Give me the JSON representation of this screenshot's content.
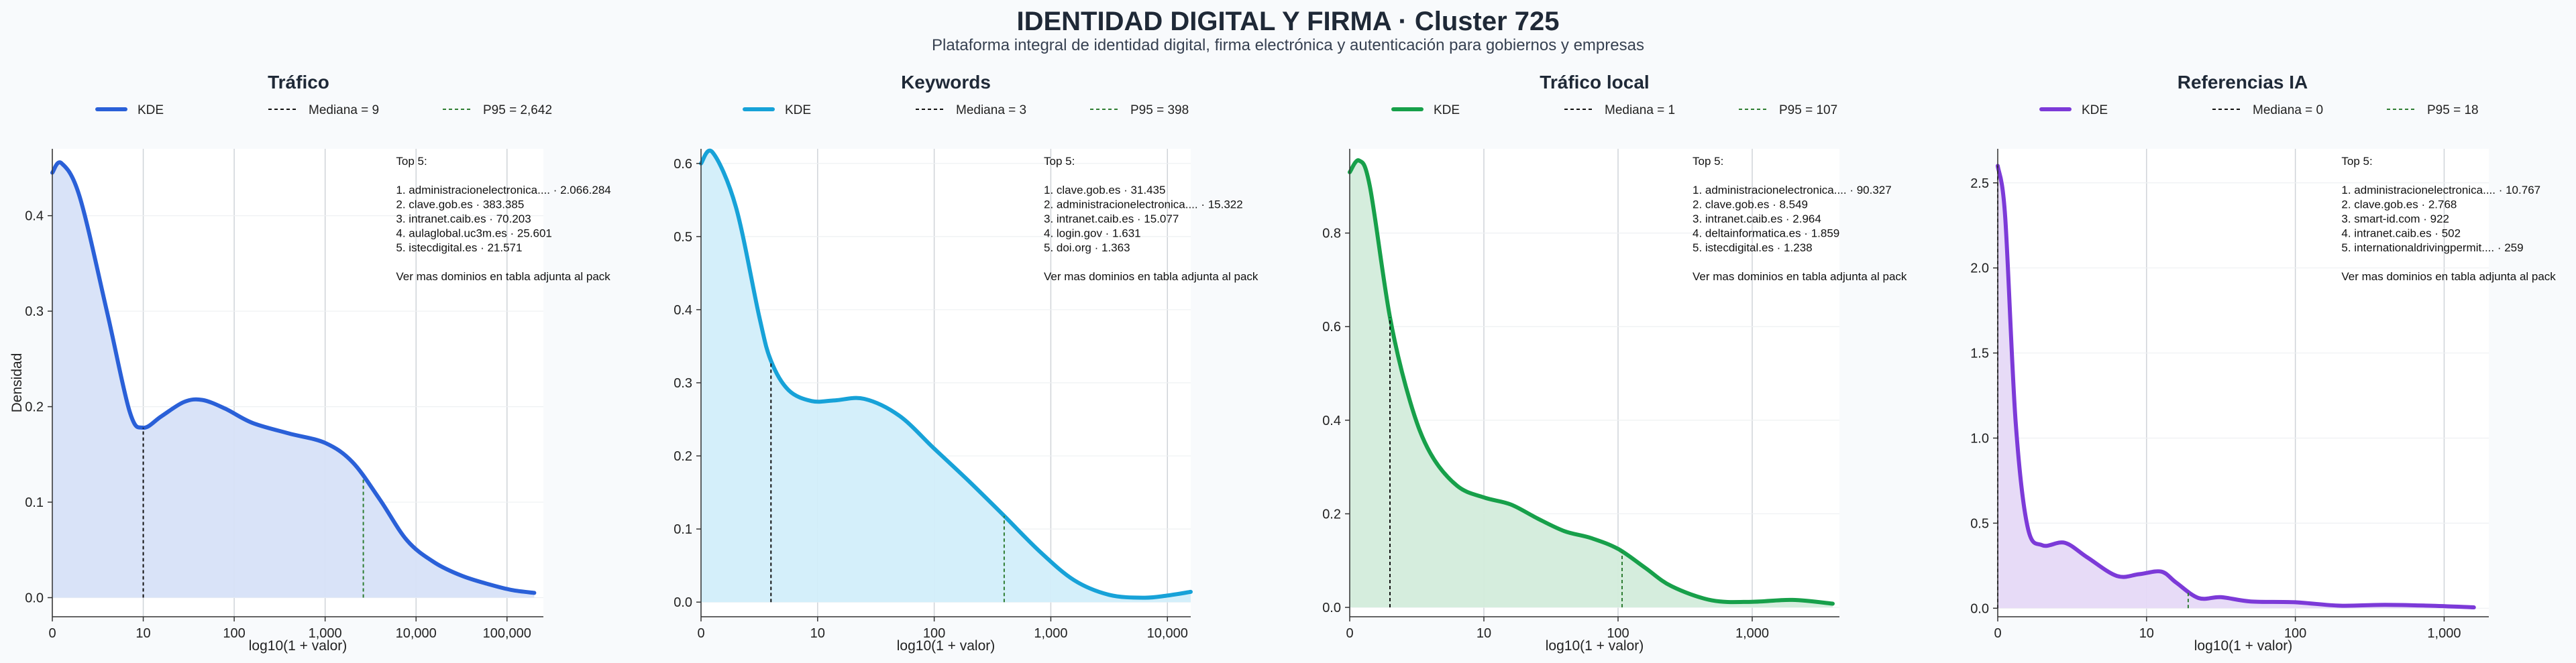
{
  "title": "IDENTIDAD DIGITAL Y FIRMA · Cluster 725",
  "subtitle": "Plataforma integral de identidad digital, firma electrónica y autenticación para gobiernos y empresas",
  "shared_ylabel": "Densidad",
  "chart_data": [
    {
      "type": "area",
      "title": "Tráfico",
      "xlabel": "log10(1 + valor)",
      "ylabel": "Densidad",
      "color": "#2a60d8",
      "fill": "#d7e2f8",
      "xlim": [
        0,
        5.4
      ],
      "ylim": [
        -0.02,
        0.47
      ],
      "x_ticks": [
        {
          "v": 0,
          "label": "0"
        },
        {
          "v": 1,
          "label": "10"
        },
        {
          "v": 2,
          "label": "100"
        },
        {
          "v": 3,
          "label": "1,000"
        },
        {
          "v": 4,
          "label": "10,000"
        },
        {
          "v": 5,
          "label": "100,000"
        }
      ],
      "y_ticks": [
        {
          "v": 0,
          "label": "0.0"
        },
        {
          "v": 0.1,
          "label": "0.1"
        },
        {
          "v": 0.2,
          "label": "0.2"
        },
        {
          "v": 0.3,
          "label": "0.3"
        },
        {
          "v": 0.4,
          "label": "0.4"
        }
      ],
      "legend": [
        {
          "label": "KDE",
          "style": "solid",
          "color": "#2a60d8"
        },
        {
          "label": "Mediana = 9",
          "style": "dashed",
          "color": "#111111"
        },
        {
          "label": "P95 = 2,642",
          "style": "dashed",
          "color": "#2e7d32"
        }
      ],
      "median_x": 1.0,
      "p95_x": 3.42,
      "series": [
        {
          "name": "KDE",
          "x": [
            0,
            0.1,
            0.3,
            0.6,
            0.85,
            1.0,
            1.2,
            1.45,
            1.65,
            1.9,
            2.2,
            2.6,
            3.0,
            3.3,
            3.6,
            3.9,
            4.2,
            4.5,
            4.8,
            5.05,
            5.3
          ],
          "y": [
            0.445,
            0.455,
            0.42,
            0.3,
            0.195,
            0.178,
            0.19,
            0.205,
            0.207,
            0.198,
            0.183,
            0.172,
            0.162,
            0.142,
            0.103,
            0.06,
            0.037,
            0.023,
            0.014,
            0.008,
            0.005
          ]
        }
      ],
      "annotation": [
        "Top 5:",
        "",
        "1. administracionelectronica.... · 2.066.284",
        "2. clave.gob.es · 383.385",
        "3. intranet.caib.es · 70.203",
        "4. aulaglobal.uc3m.es · 25.601",
        "5. istecdigital.es · 21.571",
        "",
        "Ver mas dominios en tabla adjunta al pack"
      ]
    },
    {
      "type": "area",
      "title": "Keywords",
      "xlabel": "log10(1 + valor)",
      "ylabel": "",
      "color": "#17a2d8",
      "fill": "#d2eefa",
      "xlim": [
        0,
        4.2
      ],
      "ylim": [
        -0.02,
        0.62
      ],
      "x_ticks": [
        {
          "v": 0,
          "label": "0"
        },
        {
          "v": 1,
          "label": "10"
        },
        {
          "v": 2,
          "label": "100"
        },
        {
          "v": 3,
          "label": "1,000"
        },
        {
          "v": 4,
          "label": "10,000"
        }
      ],
      "y_ticks": [
        {
          "v": 0,
          "label": "0.0"
        },
        {
          "v": 0.1,
          "label": "0.1"
        },
        {
          "v": 0.2,
          "label": "0.2"
        },
        {
          "v": 0.3,
          "label": "0.3"
        },
        {
          "v": 0.4,
          "label": "0.4"
        },
        {
          "v": 0.5,
          "label": "0.5"
        },
        {
          "v": 0.6,
          "label": "0.6"
        }
      ],
      "legend": [
        {
          "label": "KDE",
          "style": "solid",
          "color": "#17a2d8"
        },
        {
          "label": "Mediana = 3",
          "style": "dashed",
          "color": "#111111"
        },
        {
          "label": "P95 = 398",
          "style": "dashed",
          "color": "#2e7d32"
        }
      ],
      "median_x": 0.6,
      "p95_x": 2.6,
      "series": [
        {
          "name": "KDE",
          "x": [
            0,
            0.1,
            0.3,
            0.5,
            0.6,
            0.75,
            0.95,
            1.15,
            1.4,
            1.7,
            2.0,
            2.3,
            2.6,
            2.9,
            3.2,
            3.5,
            3.8,
            4.0,
            4.2
          ],
          "y": [
            0.6,
            0.615,
            0.54,
            0.39,
            0.33,
            0.29,
            0.275,
            0.276,
            0.278,
            0.255,
            0.21,
            0.165,
            0.118,
            0.07,
            0.03,
            0.01,
            0.006,
            0.009,
            0.014
          ]
        }
      ],
      "annotation": [
        "Top 5:",
        "",
        "1. clave.gob.es · 31.435",
        "2. administracionelectronica.... · 15.322",
        "3. intranet.caib.es · 15.077",
        "4. login.gov · 1.631",
        "5. doi.org · 1.363",
        "",
        "Ver mas dominios en tabla adjunta al pack"
      ]
    },
    {
      "type": "area",
      "title": "Tráfico local",
      "xlabel": "log10(1 + valor)",
      "ylabel": "",
      "color": "#17a04a",
      "fill": "#d3ecdb",
      "xlim": [
        0,
        3.65
      ],
      "ylim": [
        -0.02,
        0.98
      ],
      "x_ticks": [
        {
          "v": 0,
          "label": "0"
        },
        {
          "v": 1,
          "label": "10"
        },
        {
          "v": 2,
          "label": "100"
        },
        {
          "v": 3,
          "label": "1,000"
        }
      ],
      "y_ticks": [
        {
          "v": 0,
          "label": "0.0"
        },
        {
          "v": 0.2,
          "label": "0.2"
        },
        {
          "v": 0.4,
          "label": "0.4"
        },
        {
          "v": 0.6,
          "label": "0.6"
        },
        {
          "v": 0.8,
          "label": "0.8"
        }
      ],
      "legend": [
        {
          "label": "KDE",
          "style": "solid",
          "color": "#17a04a"
        },
        {
          "label": "Mediana = 1",
          "style": "dashed",
          "color": "#111111"
        },
        {
          "label": "P95 = 107",
          "style": "dashed",
          "color": "#2e7d32"
        }
      ],
      "median_x": 0.3,
      "p95_x": 2.03,
      "series": [
        {
          "name": "KDE",
          "x": [
            0,
            0.07,
            0.15,
            0.3,
            0.45,
            0.6,
            0.8,
            1.0,
            1.2,
            1.4,
            1.6,
            1.8,
            2.0,
            2.2,
            2.4,
            2.7,
            3.0,
            3.3,
            3.6
          ],
          "y": [
            0.93,
            0.955,
            0.9,
            0.62,
            0.44,
            0.33,
            0.26,
            0.235,
            0.22,
            0.19,
            0.163,
            0.148,
            0.125,
            0.085,
            0.045,
            0.015,
            0.012,
            0.016,
            0.008
          ]
        }
      ],
      "annotation": [
        "Top 5:",
        "",
        "1. administracionelectronica.... · 90.327",
        "2. clave.gob.es · 8.549",
        "3. intranet.caib.es · 2.964",
        "4. deltainformatica.es · 1.859",
        "5. istecdigital.es · 1.238",
        "",
        "Ver mas dominios en tabla adjunta al pack"
      ]
    },
    {
      "type": "area",
      "title": "Referencias IA",
      "xlabel": "log10(1 + valor)",
      "ylabel": "",
      "color": "#7c3ad8",
      "fill": "#e6d9f7",
      "xlim": [
        0,
        3.3
      ],
      "ylim": [
        -0.05,
        2.7
      ],
      "x_ticks": [
        {
          "v": 0,
          "label": "0"
        },
        {
          "v": 1,
          "label": "10"
        },
        {
          "v": 2,
          "label": "100"
        },
        {
          "v": 3,
          "label": "1,000"
        }
      ],
      "y_ticks": [
        {
          "v": 0,
          "label": "0.0"
        },
        {
          "v": 0.5,
          "label": "0.5"
        },
        {
          "v": 1.0,
          "label": "1.0"
        },
        {
          "v": 1.5,
          "label": "1.5"
        },
        {
          "v": 2.0,
          "label": "2.0"
        },
        {
          "v": 2.5,
          "label": "2.5"
        }
      ],
      "legend": [
        {
          "label": "KDE",
          "style": "solid",
          "color": "#7c3ad8"
        },
        {
          "label": "Mediana = 0",
          "style": "dashed",
          "color": "#111111"
        },
        {
          "label": "P95 = 18",
          "style": "dashed",
          "color": "#2e7d32"
        }
      ],
      "median_x": 0.0,
      "p95_x": 1.28,
      "series": [
        {
          "name": "KDE",
          "x": [
            0,
            0.05,
            0.12,
            0.2,
            0.3,
            0.45,
            0.6,
            0.8,
            0.95,
            1.1,
            1.2,
            1.35,
            1.5,
            1.7,
            2.0,
            2.3,
            2.6,
            2.9,
            3.2
          ],
          "y": [
            2.6,
            2.3,
            1.1,
            0.48,
            0.37,
            0.385,
            0.3,
            0.19,
            0.2,
            0.215,
            0.15,
            0.06,
            0.065,
            0.04,
            0.035,
            0.015,
            0.02,
            0.015,
            0.005
          ]
        }
      ],
      "annotation": [
        "Top 5:",
        "",
        "1. administracionelectronica.... · 10.767",
        "2. clave.gob.es · 2.768",
        "3. smart-id.com · 922",
        "4. intranet.caib.es · 502",
        "5. internationaldrivingpermit.... · 259",
        "",
        "Ver mas dominios en tabla adjunta al pack"
      ]
    }
  ]
}
